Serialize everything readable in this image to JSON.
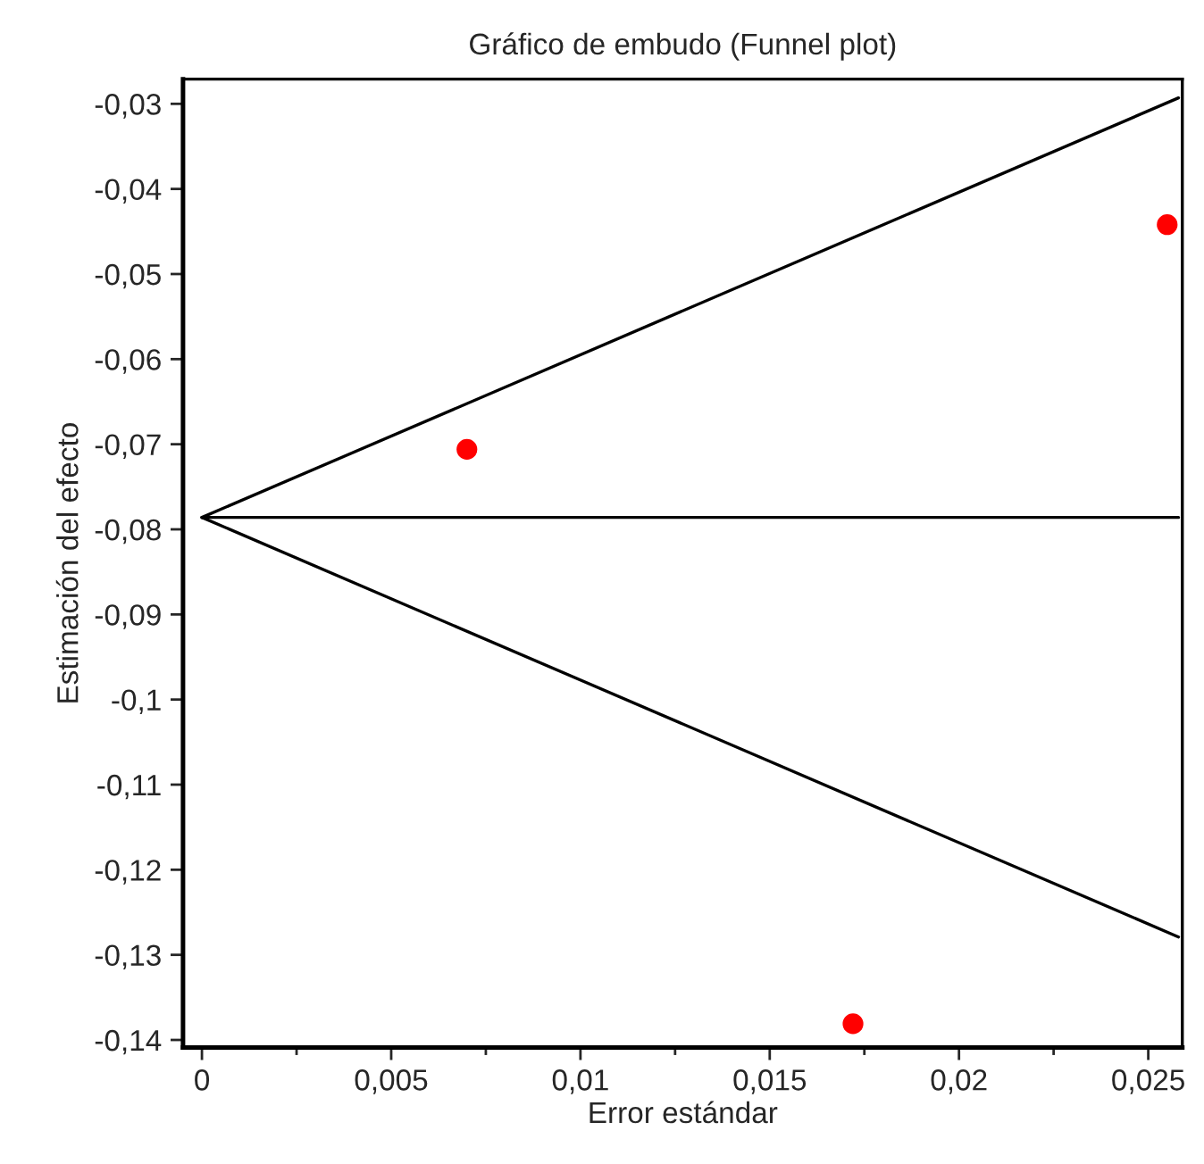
{
  "chart_data": {
    "type": "scatter",
    "title": "Gráfico de embudo (Funnel plot)",
    "xlabel": "Error estándar",
    "ylabel": "Estimación del efecto",
    "series": [
      {
        "type": "line",
        "color": "#000000",
        "x": [
          0,
          0.0258
        ],
        "values": [
          -0.0786,
          -0.0293
        ]
      },
      {
        "type": "line",
        "color": "#000000",
        "x": [
          0,
          0.0258
        ],
        "values": [
          -0.0786,
          -0.0786
        ]
      },
      {
        "type": "line",
        "color": "#000000",
        "x": [
          0,
          0.0258
        ],
        "values": [
          -0.0786,
          -0.1279
        ]
      },
      {
        "color": "#ff0000",
        "marker": "circle",
        "x": [
          0.007,
          0.0255,
          0.0172
        ],
        "values": [
          -0.0706,
          -0.0442,
          -0.1381
        ]
      }
    ],
    "xlim": [
      -0.0005,
      0.0259
    ],
    "ylim": [
      -0.1409,
      -0.0271
    ],
    "xticks": [
      {
        "value": 0,
        "label": "0"
      },
      {
        "value": 0.005,
        "label": "0,005"
      },
      {
        "value": 0.01,
        "label": "0,01"
      },
      {
        "value": 0.015,
        "label": "0,015"
      },
      {
        "value": 0.02,
        "label": "0,02"
      },
      {
        "value": 0.025,
        "label": "0,025"
      }
    ],
    "yticks": [
      {
        "value": -0.03,
        "label": "-0,03"
      },
      {
        "value": -0.04,
        "label": "-0,04"
      },
      {
        "value": -0.05,
        "label": "-0,05"
      },
      {
        "value": -0.06,
        "label": "-0,06"
      },
      {
        "value": -0.07,
        "label": "-0,07"
      },
      {
        "value": -0.08,
        "label": "-0,08"
      },
      {
        "value": -0.09,
        "label": "-0,09"
      },
      {
        "value": -0.1,
        "label": "-0,1"
      },
      {
        "value": -0.11,
        "label": "-0,11"
      },
      {
        "value": -0.12,
        "label": "-0,12"
      },
      {
        "value": -0.13,
        "label": "-0,13"
      },
      {
        "value": -0.14,
        "label": "-0,14"
      }
    ],
    "grid": false,
    "legend": false
  }
}
